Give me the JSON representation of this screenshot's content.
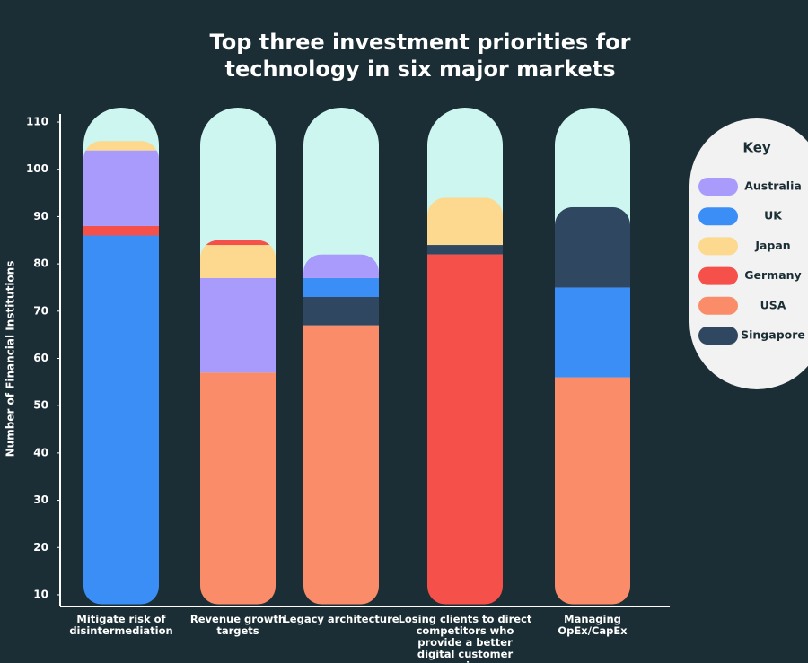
{
  "chart_data": {
    "type": "stacked-bar",
    "title": "Top three investment priorities for technology in six major markets",
    "y_label": "Number of Financial Institutions",
    "legend_title": "Key",
    "categories": [
      "Mitigate risk of disintermediation",
      "Revenue growth targets",
      "Legacy architecture",
      "Losing clients to direct competitors who provide a better digital customer experience",
      "Managing OpEx/CapEx"
    ],
    "series": [
      {
        "name": "Australia",
        "color": "#a99bfc"
      },
      {
        "name": "UK",
        "color": "#3a8ef6"
      },
      {
        "name": "Japan",
        "color": "#fcd98e"
      },
      {
        "name": "Germany",
        "color": "#f5504a"
      },
      {
        "name": "USA",
        "color": "#fa8c69"
      },
      {
        "name": "Singapore",
        "color": "#2f4760"
      }
    ],
    "stacks": [
      [
        {
          "series": "UK",
          "value": 78
        },
        {
          "series": "Germany",
          "value": 2
        },
        {
          "series": "Australia",
          "value": 16
        },
        {
          "series": "Japan",
          "value": 2
        }
      ],
      [
        {
          "series": "USA",
          "value": 49
        },
        {
          "series": "Australia",
          "value": 20
        },
        {
          "series": "Japan",
          "value": 7
        },
        {
          "series": "Germany",
          "value": 1
        }
      ],
      [
        {
          "series": "USA",
          "value": 59
        },
        {
          "series": "Singapore",
          "value": 6
        },
        {
          "series": "UK",
          "value": 4
        },
        {
          "series": "Australia",
          "value": 5
        }
      ],
      [
        {
          "series": "Germany",
          "value": 74
        },
        {
          "series": "Singapore",
          "value": 2
        },
        {
          "series": "Japan",
          "value": 10
        }
      ],
      [
        {
          "series": "USA",
          "value": 48
        },
        {
          "series": "UK",
          "value": 19
        },
        {
          "series": "Singapore",
          "value": 17
        }
      ]
    ],
    "ylim": [
      8,
      112
    ],
    "yticks": [
      10,
      20,
      30,
      40,
      50,
      60,
      70,
      80,
      90,
      100,
      110
    ],
    "grid": false,
    "legend_position": "right"
  }
}
